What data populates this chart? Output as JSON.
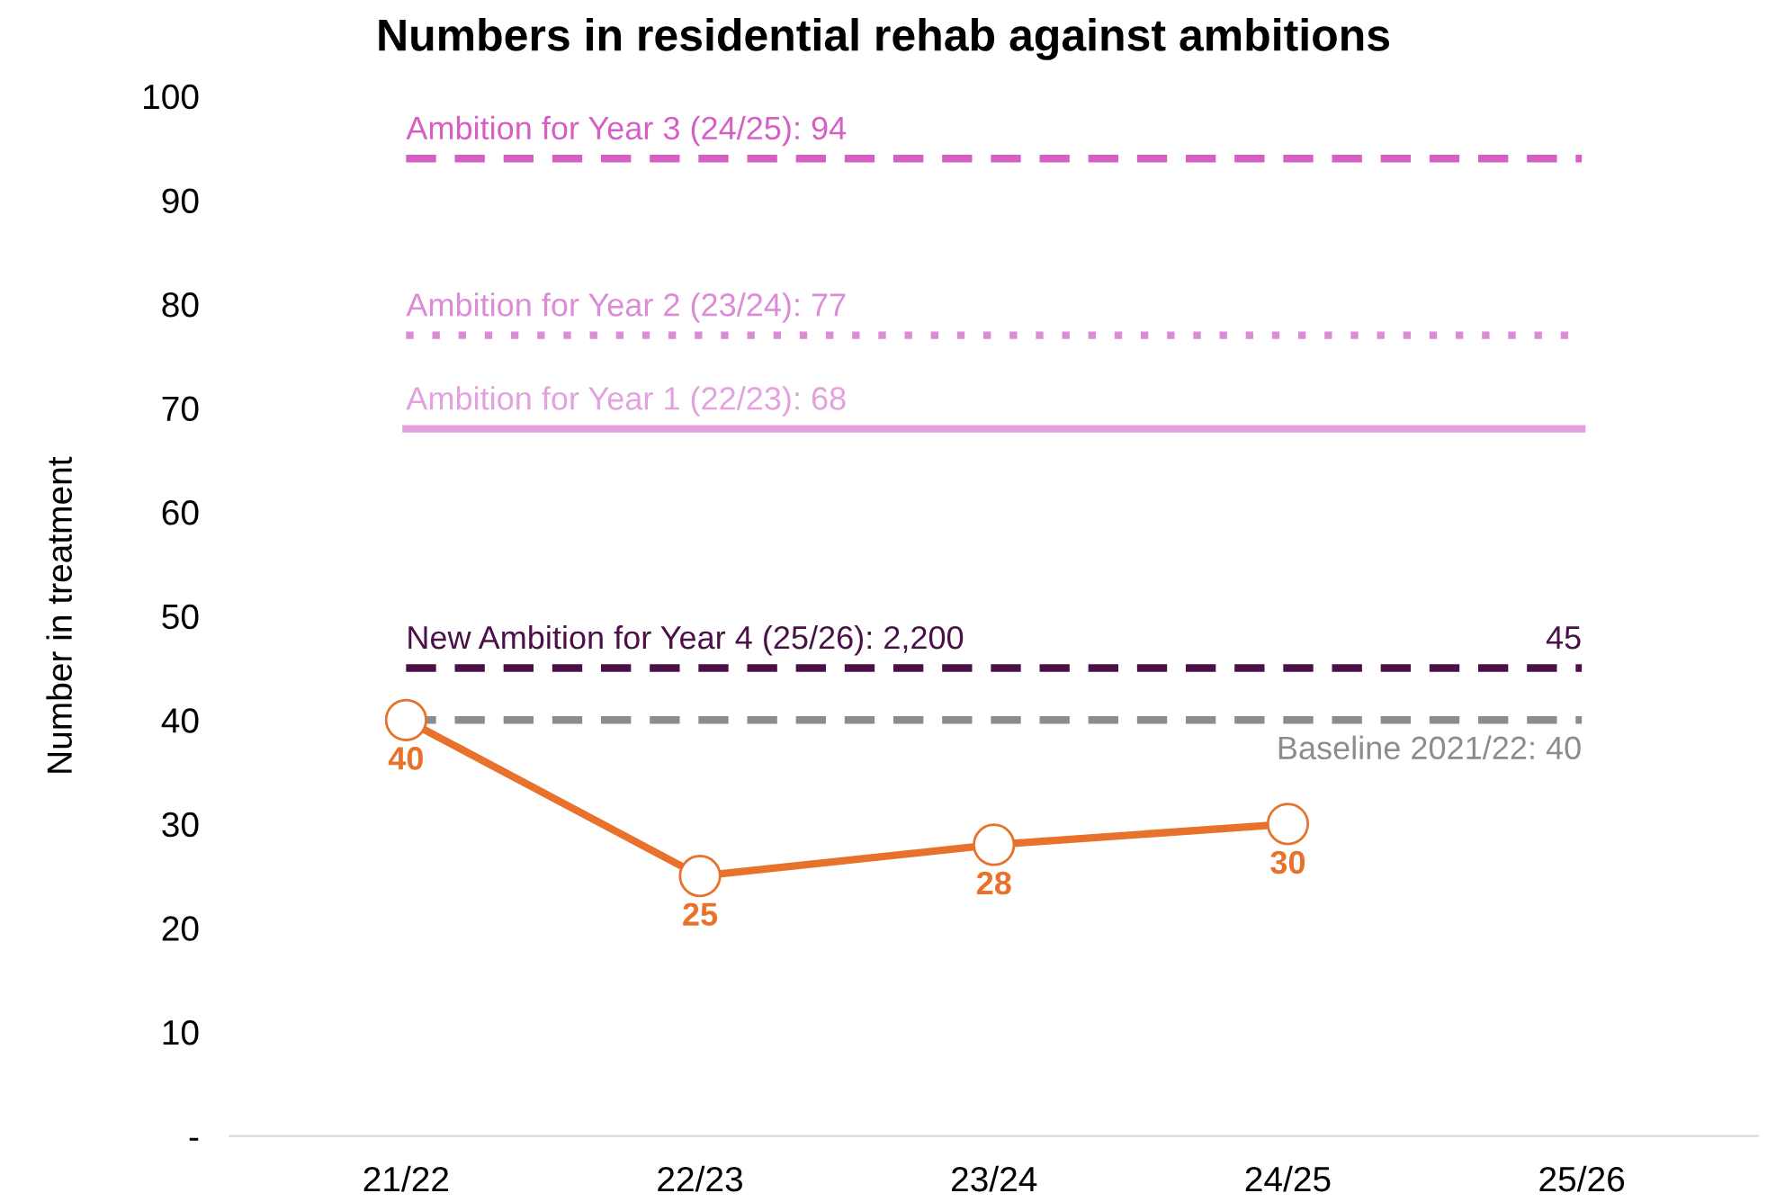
{
  "chart_data": {
    "type": "line",
    "title": "Numbers in residential rehab against ambitions",
    "ylabel": "Number in treatment",
    "categories": [
      "21/22",
      "22/23",
      "23/24",
      "24/25",
      "25/26"
    ],
    "series": [
      {
        "color": "#e8722c",
        "values": [
          40,
          25,
          28,
          30,
          null
        ]
      }
    ],
    "marker": "circle",
    "line_style": "solid",
    "data_labels": true,
    "grid": false,
    "legend": false,
    "ylim": [
      0,
      100
    ],
    "yticks": [
      {
        "value": 0,
        "label": "-"
      },
      10,
      20,
      30,
      40,
      50,
      60,
      70,
      80,
      90,
      100
    ],
    "ref_lines": [
      {
        "axis": "y",
        "value": 94,
        "label": "Ambition for Year 3 (24/25): 94",
        "color": "#d65fc4",
        "line_style": "dashed"
      },
      {
        "axis": "y",
        "value": 77,
        "label": "Ambition for Year 2 (23/24): 77",
        "color": "#dc8cd6",
        "line_style": "dotted"
      },
      {
        "axis": "y",
        "value": 68,
        "label": "Ambition for Year 1 (22/23): 68",
        "color": "#e3a2df",
        "line_style": "solid"
      },
      {
        "axis": "y",
        "value": 45,
        "label": "45",
        "color": "#4b1048",
        "line_style": "dashed"
      },
      {
        "axis": "y",
        "value": 40,
        "label": "Baseline 2021/22: 40",
        "color": "#8c8c8c",
        "line_style": "dashed"
      }
    ],
    "annotations": [
      {
        "text": "New Ambition for Year 4 (25/26): 2,200",
        "x": "21/22",
        "y": 45
      }
    ]
  }
}
